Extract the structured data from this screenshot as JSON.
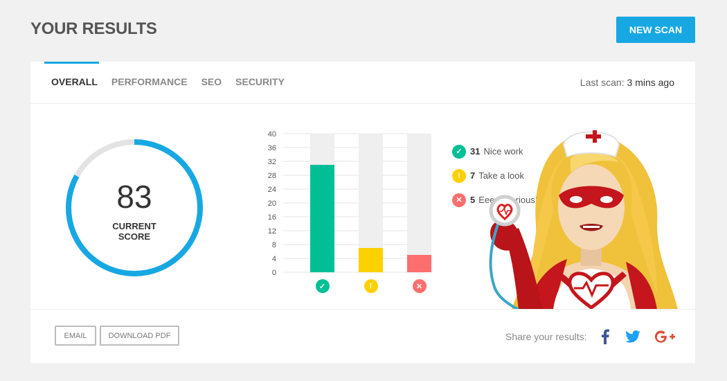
{
  "header": {
    "title": "YOUR RESULTS",
    "new_scan_label": "NEW SCAN"
  },
  "tabs": [
    {
      "label": "OVERALL",
      "active": true
    },
    {
      "label": "PERFORMANCE",
      "active": false
    },
    {
      "label": "SEO",
      "active": false
    },
    {
      "label": "SECURITY",
      "active": false
    }
  ],
  "last_scan": {
    "label": "Last scan:",
    "value": "3 mins ago"
  },
  "score": {
    "value": "83",
    "label_line1": "CURRENT",
    "label_line2": "SCORE",
    "percent": 83
  },
  "chart_data": {
    "type": "bar",
    "categories": [
      "nice-work",
      "take-a-look",
      "serious"
    ],
    "values": [
      31,
      7,
      5
    ],
    "ylim": [
      0,
      40
    ],
    "yticks": [
      "0",
      "4",
      "8",
      "12",
      "16",
      "20",
      "24",
      "28",
      "32",
      "36",
      "40"
    ],
    "colors": [
      "#00bf96",
      "#fdd000",
      "#fd6e6e"
    ],
    "track_color": "#efefef",
    "icons": [
      "check-icon",
      "exclamation-icon",
      "cross-icon"
    ]
  },
  "legend": [
    {
      "count": "31",
      "label": "Nice work",
      "icon": "check-icon",
      "color": "#00bf96",
      "glyph": "✓"
    },
    {
      "count": "7",
      "label": "Take a look",
      "icon": "exclamation-icon",
      "color": "#fdd000",
      "glyph": "!"
    },
    {
      "count": "5",
      "label": "Eeep! Serious!",
      "icon": "cross-icon",
      "color": "#fd6e6e",
      "glyph": "✕"
    }
  ],
  "footer": {
    "email_label": "EMAIL",
    "download_label": "DOWNLOAD PDF",
    "share_label": "Share your results:",
    "social": [
      "facebook-icon",
      "twitter-icon",
      "google-plus-icon"
    ]
  },
  "colors": {
    "accent": "#17a8e3",
    "score_ring": "#17a8e3",
    "ring_track": "#e3e3e3"
  }
}
